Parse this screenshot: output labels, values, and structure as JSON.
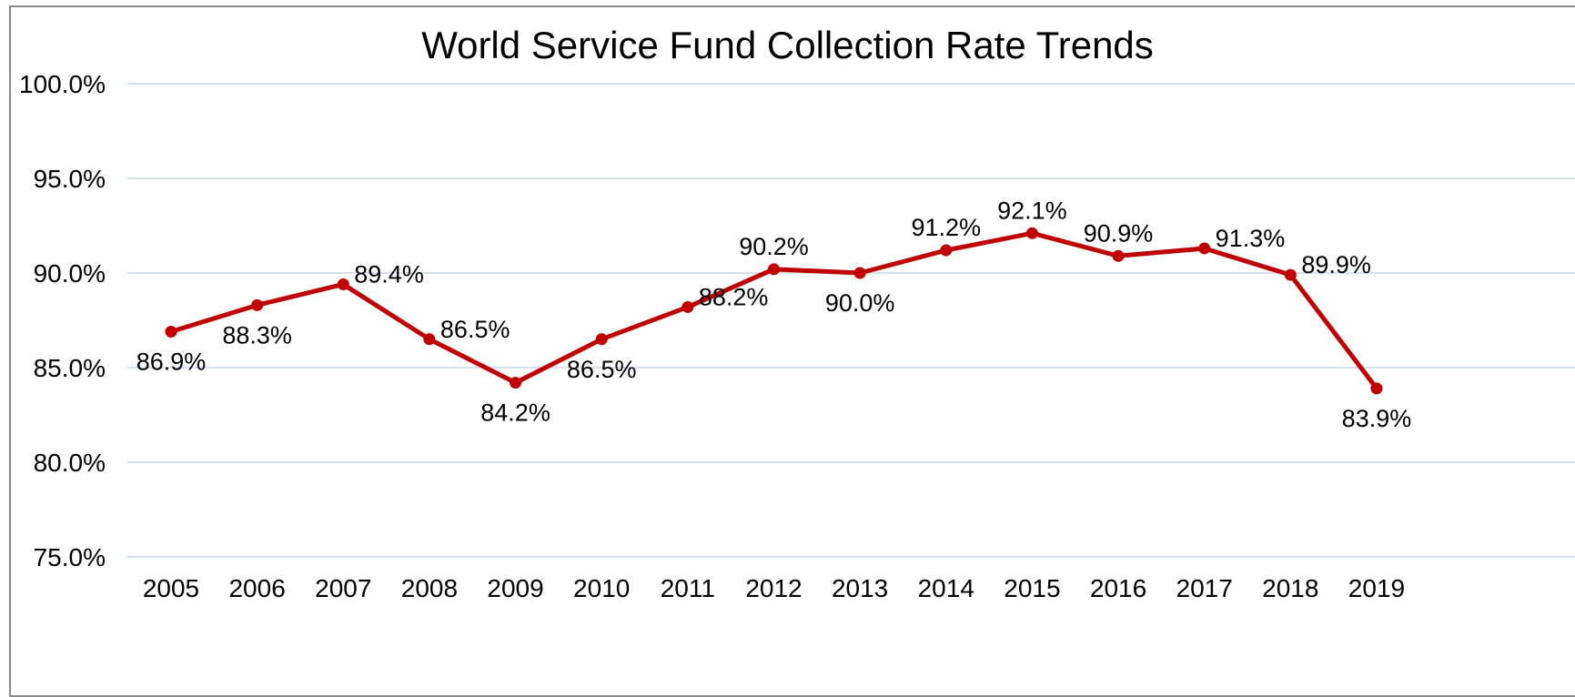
{
  "chart_data": {
    "type": "line",
    "title": "World Service Fund Collection Rate Trends",
    "xlabel": "",
    "ylabel": "",
    "categories": [
      "2005",
      "2006",
      "2007",
      "2008",
      "2009",
      "2010",
      "2011",
      "2012",
      "2013",
      "2014",
      "2015",
      "2016",
      "2017",
      "2018",
      "2019"
    ],
    "series": [
      {
        "values": [
          86.9,
          88.3,
          89.4,
          86.5,
          84.2,
          86.5,
          88.2,
          90.2,
          90.0,
          91.2,
          92.1,
          90.9,
          91.3,
          89.9,
          83.9
        ],
        "labels": [
          "86.9%",
          "88.3%",
          "89.4%",
          "86.5%",
          "84.2%",
          "86.5%",
          "88.2%",
          "90.2%",
          "90.0%",
          "91.2%",
          "92.1%",
          "90.9%",
          "91.3%",
          "89.9%",
          "83.9%"
        ],
        "label_positions": [
          "below",
          "below",
          "right",
          "right",
          "below",
          "below",
          "right",
          "above",
          "below",
          "above",
          "above",
          "above",
          "right",
          "right",
          "below"
        ]
      }
    ],
    "ylim": [
      75,
      100
    ],
    "yticks": [
      "75.0%",
      "80.0%",
      "85.0%",
      "90.0%",
      "95.0%",
      "100.0%"
    ],
    "ytick_values": [
      75,
      80,
      85,
      90,
      95,
      100
    ],
    "grid": true,
    "legend": "none",
    "colors": {
      "line": "#c00000",
      "marker": "#c00000",
      "grid": "#d6e1ec"
    }
  }
}
